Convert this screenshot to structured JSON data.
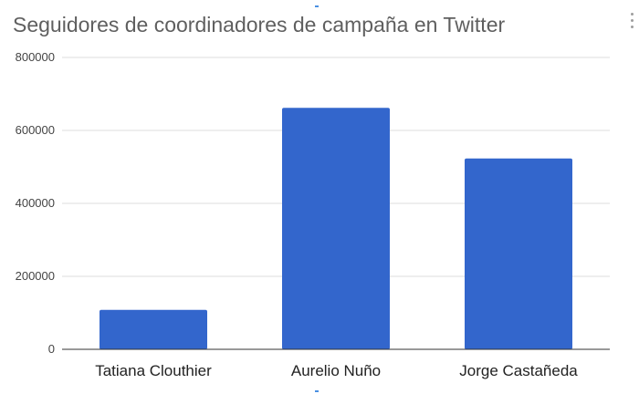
{
  "chart_data": {
    "type": "bar",
    "title": "Seguidores de coordinadores de campaña en Twitter",
    "xlabel": "",
    "ylabel": "",
    "categories": [
      "Tatiana Clouthier",
      "Aurelio Nuño",
      "Jorge Castañeda"
    ],
    "values": [
      108000,
      662000,
      523000
    ],
    "ylim": [
      0,
      800000
    ],
    "yticks": [
      0,
      200000,
      400000,
      600000,
      800000
    ],
    "grid": true,
    "legend": "none",
    "bar_color": "#3366cc"
  }
}
